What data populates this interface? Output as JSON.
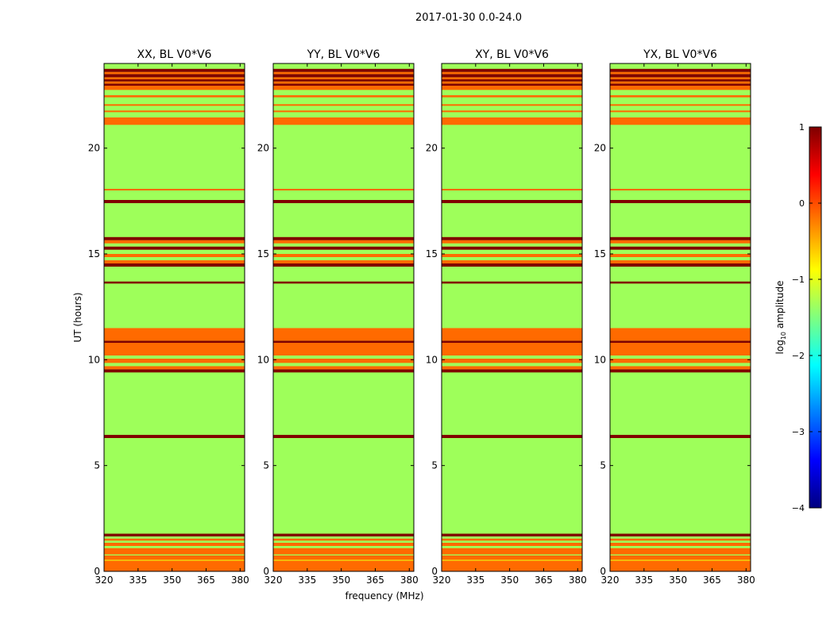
{
  "figure": {
    "suptitle": "2017-01-30 0.0-24.0",
    "xlabel": "frequency (MHz)",
    "ylabel": "UT (hours)"
  },
  "colors": {
    "green": "#9EFF5A",
    "orange": "#FF6A00",
    "dark_red": "#800000",
    "yellow": "#FFD000",
    "white": "#FFFFFF",
    "grid_line": "#000000"
  },
  "colorbar": {
    "label_main": "log",
    "label_sub": "10",
    "label_rest": " amplitude",
    "range": [
      -4,
      1
    ],
    "ticks": [
      {
        "value": 1,
        "label": "1"
      },
      {
        "value": 0,
        "label": "0"
      },
      {
        "value": -1,
        "label": "−1"
      },
      {
        "value": -2,
        "label": "−2"
      },
      {
        "value": -3,
        "label": "−3"
      },
      {
        "value": -4,
        "label": "−4"
      }
    ],
    "stops": [
      "#00007F",
      "#0000FF",
      "#007FFF",
      "#00FFFF",
      "#7FFF7F",
      "#FFFF00",
      "#FF7F00",
      "#FF0000",
      "#7F0000"
    ]
  },
  "chart_data": {
    "type": "heatmap",
    "xlim": [
      320,
      382
    ],
    "ylim": [
      0,
      24
    ],
    "xticks": [
      320,
      335,
      350,
      365,
      380
    ],
    "yticks": [
      0,
      5,
      10,
      15,
      20
    ],
    "panels": [
      {
        "title": "XX, BL V0*V6"
      },
      {
        "title": "YY, BL V0*V6"
      },
      {
        "title": "XY, BL V0*V6"
      },
      {
        "title": "YX, BL V0*V6"
      }
    ],
    "background_value": -0.8,
    "bands": [
      {
        "y0": 0.0,
        "y1": 0.5,
        "color": "orange"
      },
      {
        "y0": 0.5,
        "y1": 0.55,
        "color": "yellow"
      },
      {
        "y0": 0.55,
        "y1": 0.75,
        "color": "orange"
      },
      {
        "y0": 0.75,
        "y1": 0.8,
        "color": "green"
      },
      {
        "y0": 0.8,
        "y1": 1.1,
        "color": "orange"
      },
      {
        "y0": 1.1,
        "y1": 1.2,
        "color": "green"
      },
      {
        "y0": 1.2,
        "y1": 1.35,
        "color": "orange"
      },
      {
        "y0": 1.35,
        "y1": 1.45,
        "color": "green"
      },
      {
        "y0": 1.45,
        "y1": 1.55,
        "color": "orange"
      },
      {
        "y0": 1.55,
        "y1": 1.65,
        "color": "green"
      },
      {
        "y0": 1.65,
        "y1": 1.78,
        "color": "dark_red"
      },
      {
        "y0": 1.78,
        "y1": 6.3,
        "color": "green"
      },
      {
        "y0": 6.3,
        "y1": 6.45,
        "color": "dark_red"
      },
      {
        "y0": 6.45,
        "y1": 9.4,
        "color": "green"
      },
      {
        "y0": 9.4,
        "y1": 9.55,
        "color": "dark_red"
      },
      {
        "y0": 9.55,
        "y1": 9.7,
        "color": "orange"
      },
      {
        "y0": 9.7,
        "y1": 9.85,
        "color": "green"
      },
      {
        "y0": 9.85,
        "y1": 10.05,
        "color": "orange"
      },
      {
        "y0": 10.05,
        "y1": 10.2,
        "color": "green"
      },
      {
        "y0": 10.2,
        "y1": 10.8,
        "color": "orange"
      },
      {
        "y0": 10.8,
        "y1": 10.9,
        "color": "dark_red"
      },
      {
        "y0": 10.9,
        "y1": 11.5,
        "color": "orange"
      },
      {
        "y0": 11.5,
        "y1": 13.6,
        "color": "green"
      },
      {
        "y0": 13.6,
        "y1": 13.7,
        "color": "dark_red"
      },
      {
        "y0": 13.7,
        "y1": 14.4,
        "color": "green"
      },
      {
        "y0": 14.4,
        "y1": 14.55,
        "color": "dark_red"
      },
      {
        "y0": 14.55,
        "y1": 14.7,
        "color": "orange"
      },
      {
        "y0": 14.7,
        "y1": 14.85,
        "color": "green"
      },
      {
        "y0": 14.85,
        "y1": 15.0,
        "color": "orange"
      },
      {
        "y0": 15.0,
        "y1": 15.2,
        "color": "green"
      },
      {
        "y0": 15.2,
        "y1": 15.35,
        "color": "dark_red"
      },
      {
        "y0": 15.35,
        "y1": 15.5,
        "color": "green"
      },
      {
        "y0": 15.5,
        "y1": 15.65,
        "color": "orange"
      },
      {
        "y0": 15.65,
        "y1": 15.8,
        "color": "dark_red"
      },
      {
        "y0": 15.8,
        "y1": 17.4,
        "color": "green"
      },
      {
        "y0": 17.4,
        "y1": 17.55,
        "color": "dark_red"
      },
      {
        "y0": 17.55,
        "y1": 18.0,
        "color": "green"
      },
      {
        "y0": 18.0,
        "y1": 18.08,
        "color": "orange"
      },
      {
        "y0": 18.08,
        "y1": 21.1,
        "color": "green"
      },
      {
        "y0": 21.1,
        "y1": 21.45,
        "color": "orange"
      },
      {
        "y0": 21.45,
        "y1": 21.7,
        "color": "green"
      },
      {
        "y0": 21.7,
        "y1": 21.78,
        "color": "orange"
      },
      {
        "y0": 21.78,
        "y1": 22.0,
        "color": "green"
      },
      {
        "y0": 22.0,
        "y1": 22.08,
        "color": "orange"
      },
      {
        "y0": 22.08,
        "y1": 22.4,
        "color": "green"
      },
      {
        "y0": 22.4,
        "y1": 22.5,
        "color": "orange"
      },
      {
        "y0": 22.5,
        "y1": 22.75,
        "color": "green"
      },
      {
        "y0": 22.75,
        "y1": 22.95,
        "color": "orange"
      },
      {
        "y0": 22.95,
        "y1": 23.05,
        "color": "dark_red"
      },
      {
        "y0": 23.05,
        "y1": 23.15,
        "color": "orange"
      },
      {
        "y0": 23.15,
        "y1": 23.25,
        "color": "dark_red"
      },
      {
        "y0": 23.25,
        "y1": 23.35,
        "color": "orange"
      },
      {
        "y0": 23.35,
        "y1": 23.5,
        "color": "dark_red"
      },
      {
        "y0": 23.5,
        "y1": 23.6,
        "color": "orange"
      },
      {
        "y0": 23.6,
        "y1": 23.75,
        "color": "dark_red"
      },
      {
        "y0": 23.75,
        "y1": 24.0,
        "color": "green"
      }
    ]
  }
}
